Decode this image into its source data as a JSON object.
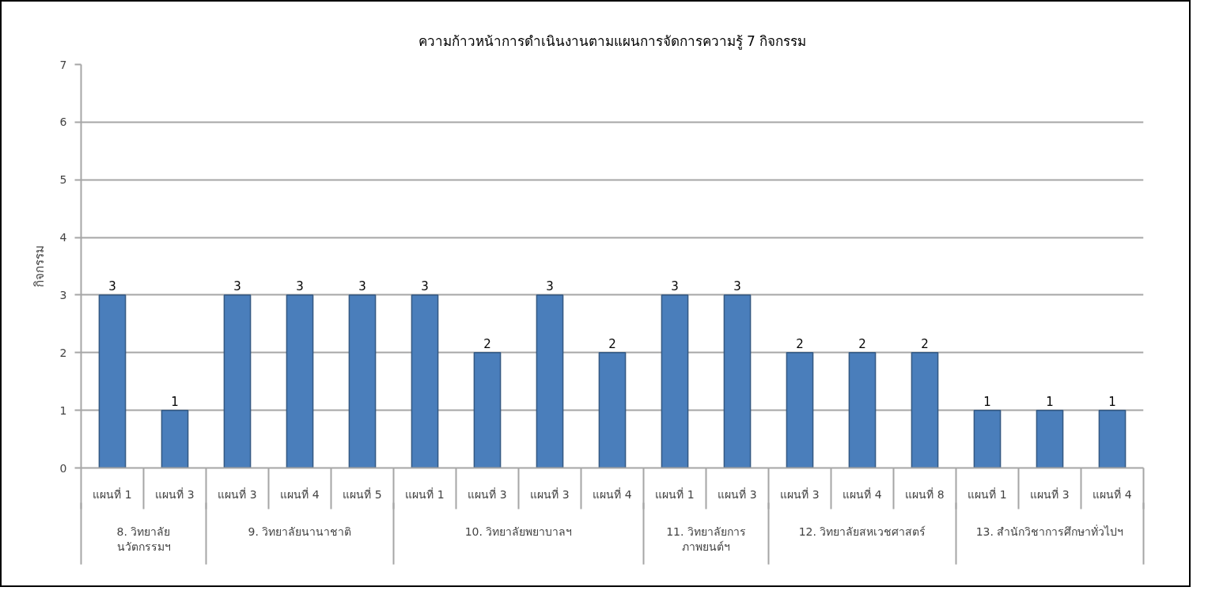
{
  "chart_data": {
    "type": "bar",
    "title": "ความก้าวหน้าการดำเนินงานตามแผนการจัดการความรู้ 7 กิจกรรม",
    "ylabel": "กิจกรรม",
    "categories": [
      "แผนที่ 1",
      "แผนที่ 3",
      "แผนที่ 3",
      "แผนที่ 4",
      "แผนที่ 5",
      "แผนที่ 1",
      "แผนที่ 3",
      "แผนที่ 3",
      "แผนที่ 4",
      "แผนที่ 1",
      "แผนที่ 3",
      "แผนที่ 3",
      "แผนที่ 4",
      "แผนที่ 8",
      "แผนที่ 1",
      "แผนที่ 3",
      "แผนที่ 4"
    ],
    "series": [
      {
        "color": "#4a7ebb",
        "values": [
          3,
          1,
          null,
          null,
          null,
          null,
          null,
          null,
          null,
          null,
          null,
          null,
          null,
          null,
          null,
          null,
          null
        ]
      },
      {
        "color": "#4a7ebb",
        "values": [
          null,
          null,
          3,
          3,
          3,
          null,
          null,
          null,
          null,
          null,
          null,
          null,
          null,
          null,
          null,
          null,
          null
        ]
      },
      {
        "color": "#4a7ebb",
        "values": [
          null,
          null,
          null,
          null,
          null,
          3,
          2,
          3,
          2,
          null,
          null,
          null,
          null,
          null,
          null,
          null,
          null
        ]
      },
      {
        "color": "#4a7ebb",
        "values": [
          null,
          null,
          null,
          null,
          null,
          null,
          null,
          null,
          null,
          3,
          3,
          null,
          null,
          null,
          null,
          null,
          null
        ]
      },
      {
        "color": "#4a7ebb",
        "values": [
          null,
          null,
          null,
          null,
          null,
          null,
          null,
          null,
          null,
          null,
          null,
          2,
          2,
          2,
          null,
          null,
          null
        ]
      },
      {
        "color": "#4a7ebb",
        "values": [
          null,
          null,
          null,
          null,
          null,
          null,
          null,
          null,
          null,
          null,
          null,
          null,
          null,
          null,
          1,
          1,
          1
        ]
      }
    ],
    "annotations": [
      "8. วิทยาลัย\nนวัตกรรมฯ",
      "9. วิทยาลัยนานาชาติ",
      "10. วิทยาลัยพยาบาลฯ",
      "11. วิทยาลัยการ\nภาพยนต์ฯ",
      "12. วิทยาลัยสหเวชศาสตร์",
      "13. สำนักวิชาการศึกษาทั่วไปฯ"
    ],
    "ylim": [
      0,
      7
    ],
    "yticks": [
      0,
      1,
      2,
      3,
      4,
      5,
      6,
      7
    ],
    "grid": "y",
    "data_labels": true
  }
}
